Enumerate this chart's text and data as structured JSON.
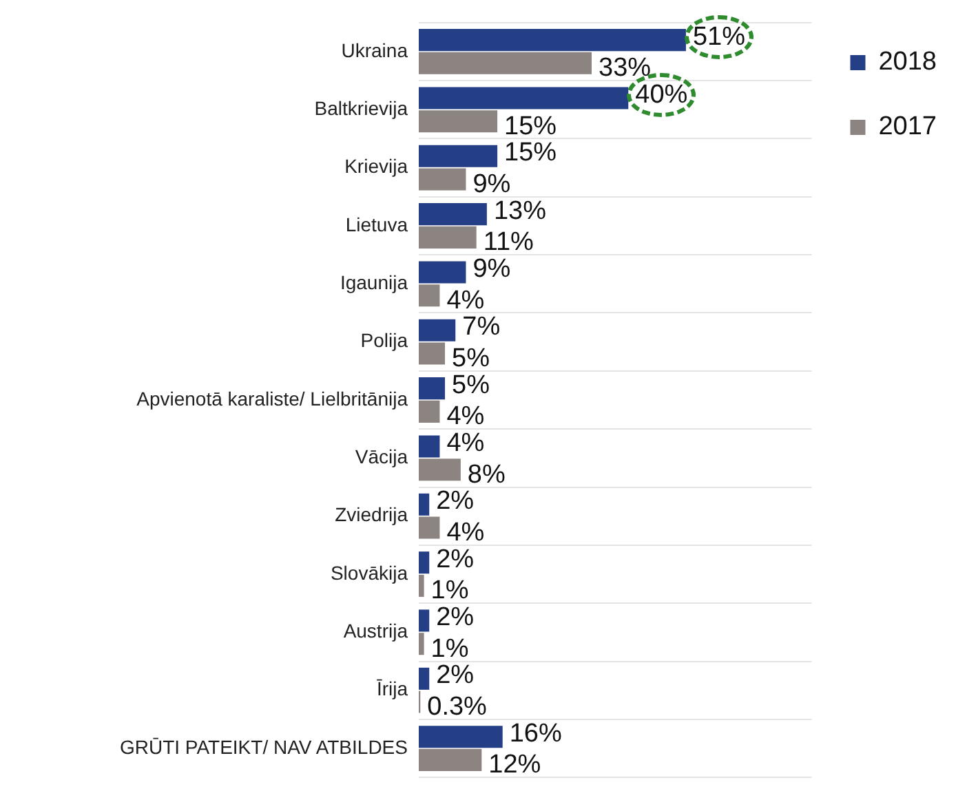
{
  "chart_data": {
    "type": "bar",
    "orientation": "horizontal",
    "categories": [
      "Ukraina",
      "Baltkrievija",
      "Krievija",
      "Lietuva",
      "Igaunija",
      "Polija",
      "Apvienotā karaliste/ Lielbritānija",
      "Vācija",
      "Zviedrija",
      "Slovākija",
      "Austrija",
      "Īrija",
      "GRŪTI PATEIKT/ NAV ATBILDES"
    ],
    "series": [
      {
        "name": "2018",
        "color": "#243f85",
        "values": [
          51,
          40,
          15,
          13,
          9,
          7,
          5,
          4,
          2,
          2,
          2,
          2,
          16
        ],
        "value_labels": [
          "51%",
          "40%",
          "15%",
          "13%",
          "9%",
          "7%",
          "5%",
          "4%",
          "2%",
          "2%",
          "2%",
          "2%",
          "16%"
        ]
      },
      {
        "name": "2017",
        "color": "#8c8480",
        "values": [
          33,
          15,
          9,
          11,
          4,
          5,
          4,
          8,
          4,
          1,
          1,
          0.3,
          12
        ],
        "value_labels": [
          "33%",
          "15%",
          "9%",
          "11%",
          "4%",
          "5%",
          "4%",
          "8%",
          "4%",
          "1%",
          "1%",
          "0.3%",
          "12%"
        ]
      }
    ],
    "xlim": [
      0,
      75
    ],
    "grid": "y",
    "legend": "top right"
  }
}
